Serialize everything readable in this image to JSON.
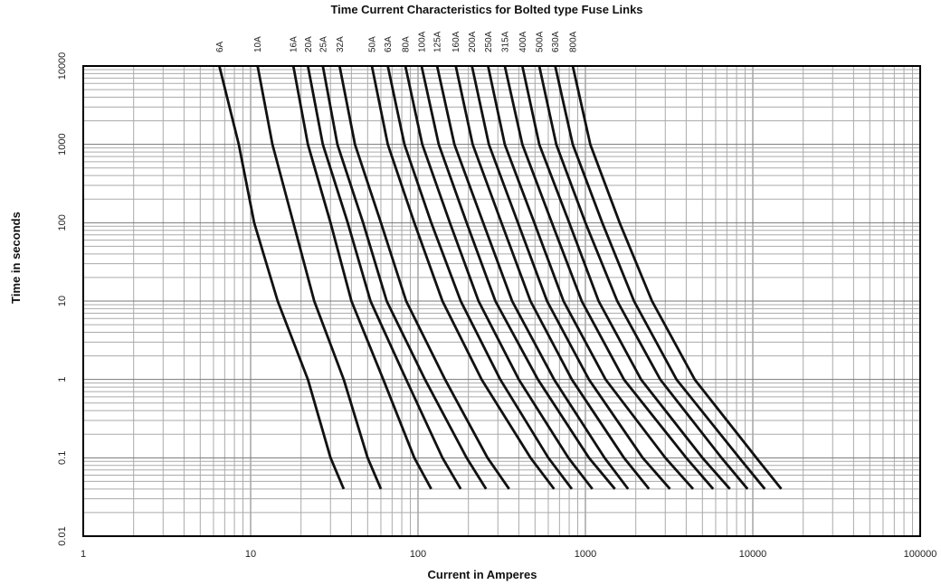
{
  "chart_data": {
    "type": "line",
    "title": "Time Current Characteristics for Bolted type  Fuse Links",
    "xlabel": "Current  in Amperes",
    "ylabel": "Time in seconds",
    "x_scale": "log",
    "y_scale": "log",
    "xlim": [
      1,
      100000
    ],
    "ylim": [
      0.01,
      10000
    ],
    "x_ticks": [
      "1",
      "10",
      "100",
      "1000",
      "10000",
      "100000"
    ],
    "y_ticks": [
      "0.01",
      "0.1",
      "1",
      "10",
      "100",
      "1000",
      "10000"
    ],
    "grid": true,
    "legend": "labels above plot",
    "line_color": "#111111",
    "series": [
      {
        "name": "6A",
        "points": [
          [
            6.5,
            10000
          ],
          [
            8.5,
            1000
          ],
          [
            10.5,
            100
          ],
          [
            14.5,
            10
          ],
          [
            22,
            1
          ],
          [
            30,
            0.1
          ],
          [
            36,
            0.04
          ]
        ]
      },
      {
        "name": "10A",
        "points": [
          [
            11,
            10000
          ],
          [
            13.5,
            1000
          ],
          [
            18,
            100
          ],
          [
            24,
            10
          ],
          [
            36,
            1
          ],
          [
            50,
            0.1
          ],
          [
            60,
            0.04
          ]
        ]
      },
      {
        "name": "16A",
        "points": [
          [
            18,
            10000
          ],
          [
            22,
            1000
          ],
          [
            30,
            100
          ],
          [
            40,
            10
          ],
          [
            62,
            1
          ],
          [
            95,
            0.1
          ],
          [
            120,
            0.04
          ]
        ]
      },
      {
        "name": "20A",
        "points": [
          [
            22,
            10000
          ],
          [
            27,
            1000
          ],
          [
            38,
            100
          ],
          [
            52,
            10
          ],
          [
            85,
            1
          ],
          [
            140,
            0.1
          ],
          [
            180,
            0.04
          ]
        ]
      },
      {
        "name": "25A",
        "points": [
          [
            27,
            10000
          ],
          [
            33,
            1000
          ],
          [
            47,
            100
          ],
          [
            65,
            10
          ],
          [
            110,
            1
          ],
          [
            195,
            0.1
          ],
          [
            255,
            0.04
          ]
        ]
      },
      {
        "name": "32A",
        "points": [
          [
            34,
            10000
          ],
          [
            42,
            1000
          ],
          [
            60,
            100
          ],
          [
            85,
            10
          ],
          [
            145,
            1
          ],
          [
            260,
            0.1
          ],
          [
            350,
            0.04
          ]
        ]
      },
      {
        "name": "50A",
        "points": [
          [
            53,
            10000
          ],
          [
            66,
            1000
          ],
          [
            95,
            100
          ],
          [
            140,
            10
          ],
          [
            240,
            1
          ],
          [
            470,
            0.1
          ],
          [
            650,
            0.04
          ]
        ]
      },
      {
        "name": "63A",
        "points": [
          [
            66,
            10000
          ],
          [
            83,
            1000
          ],
          [
            120,
            100
          ],
          [
            180,
            10
          ],
          [
            310,
            1
          ],
          [
            600,
            0.1
          ],
          [
            830,
            0.04
          ]
        ]
      },
      {
        "name": "80A",
        "points": [
          [
            84,
            10000
          ],
          [
            106,
            1000
          ],
          [
            155,
            100
          ],
          [
            230,
            10
          ],
          [
            400,
            1
          ],
          [
            790,
            0.1
          ],
          [
            1100,
            0.04
          ]
        ]
      },
      {
        "name": "100A",
        "points": [
          [
            105,
            10000
          ],
          [
            133,
            1000
          ],
          [
            195,
            100
          ],
          [
            290,
            10
          ],
          [
            520,
            1
          ],
          [
            1050,
            0.1
          ],
          [
            1500,
            0.04
          ]
        ]
      },
      {
        "name": "125A",
        "points": [
          [
            130,
            10000
          ],
          [
            165,
            1000
          ],
          [
            245,
            100
          ],
          [
            365,
            10
          ],
          [
            650,
            1
          ],
          [
            1300,
            0.1
          ],
          [
            1800,
            0.04
          ]
        ]
      },
      {
        "name": "160A",
        "points": [
          [
            168,
            10000
          ],
          [
            212,
            1000
          ],
          [
            315,
            100
          ],
          [
            470,
            10
          ],
          [
            830,
            1
          ],
          [
            1700,
            0.1
          ],
          [
            2400,
            0.04
          ]
        ]
      },
      {
        "name": "200A",
        "points": [
          [
            210,
            10000
          ],
          [
            265,
            1000
          ],
          [
            395,
            100
          ],
          [
            590,
            10
          ],
          [
            1050,
            1
          ],
          [
            2200,
            0.1
          ],
          [
            3200,
            0.04
          ]
        ]
      },
      {
        "name": "250A",
        "points": [
          [
            262,
            10000
          ],
          [
            330,
            1000
          ],
          [
            495,
            100
          ],
          [
            740,
            10
          ],
          [
            1320,
            1
          ],
          [
            3000,
            0.1
          ],
          [
            4400,
            0.04
          ]
        ]
      },
      {
        "name": "315A",
        "points": [
          [
            330,
            10000
          ],
          [
            420,
            1000
          ],
          [
            630,
            100
          ],
          [
            950,
            10
          ],
          [
            1700,
            1
          ],
          [
            4000,
            0.1
          ],
          [
            5800,
            0.04
          ]
        ]
      },
      {
        "name": "400A",
        "points": [
          [
            420,
            10000
          ],
          [
            530,
            1000
          ],
          [
            800,
            100
          ],
          [
            1200,
            10
          ],
          [
            2150,
            1
          ],
          [
            5000,
            0.1
          ],
          [
            7300,
            0.04
          ]
        ]
      },
      {
        "name": "500A",
        "points": [
          [
            530,
            10000
          ],
          [
            670,
            1000
          ],
          [
            1000,
            100
          ],
          [
            1550,
            10
          ],
          [
            2800,
            1
          ],
          [
            6500,
            0.1
          ],
          [
            9300,
            0.04
          ]
        ]
      },
      {
        "name": "630A",
        "points": [
          [
            660,
            10000
          ],
          [
            840,
            1000
          ],
          [
            1260,
            100
          ],
          [
            1950,
            10
          ],
          [
            3500,
            1
          ],
          [
            8300,
            0.1
          ],
          [
            11800,
            0.04
          ]
        ]
      },
      {
        "name": "800A",
        "points": [
          [
            840,
            10000
          ],
          [
            1070,
            1000
          ],
          [
            1600,
            100
          ],
          [
            2500,
            10
          ],
          [
            4500,
            1
          ],
          [
            10500,
            0.1
          ],
          [
            14800,
            0.04
          ]
        ]
      }
    ]
  }
}
